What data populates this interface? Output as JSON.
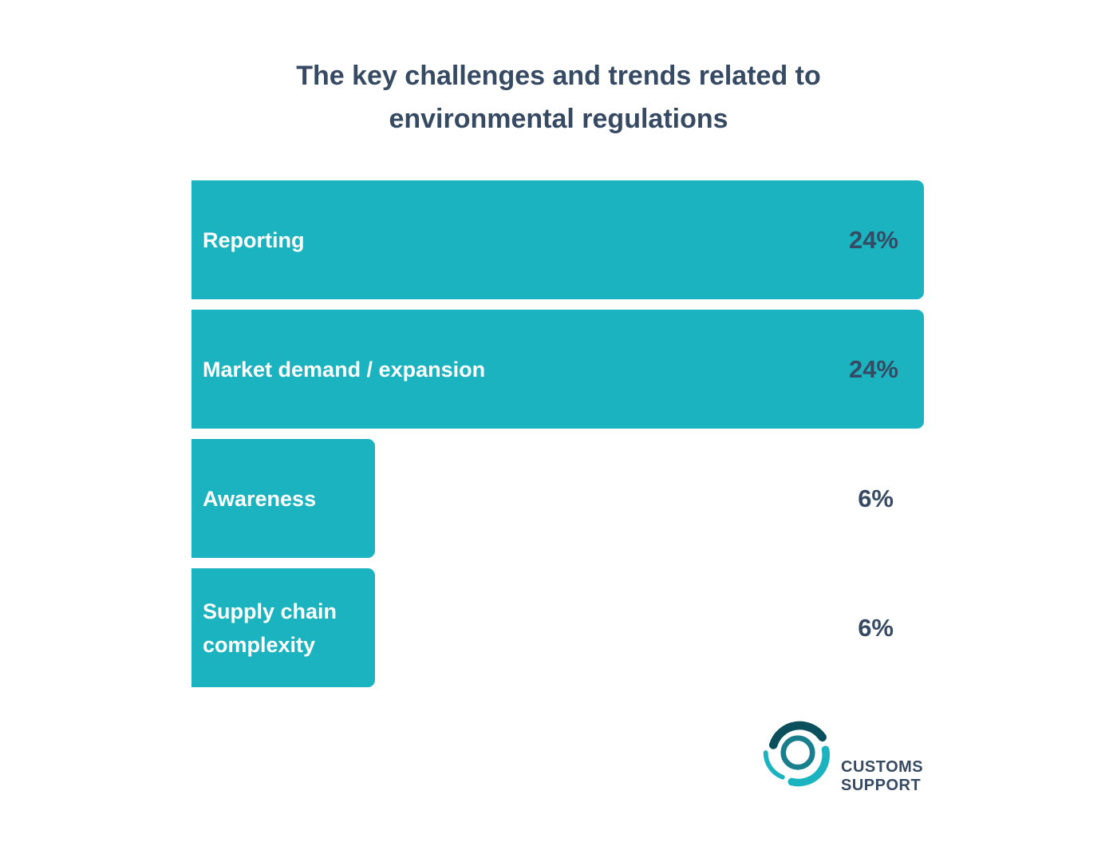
{
  "chart_data": {
    "type": "bar",
    "orientation": "horizontal",
    "title": "The key challenges and trends related to environmental regulations",
    "title_lines": [
      "The key challenges and trends related to",
      "environmental regulations"
    ],
    "categories": [
      "Reporting",
      "Market demand / expansion",
      "Awareness",
      "Supply chain complexity"
    ],
    "category_lines": [
      "Reporting",
      "Market demand / expansion",
      "Awareness",
      "Supply chain\ncomplexity"
    ],
    "values": [
      24,
      24,
      6,
      6
    ],
    "value_labels": [
      "24%",
      "24%",
      "6%",
      "6%"
    ],
    "xlim": [
      0,
      24
    ],
    "grid": false,
    "bar_color": "#1ab3bf",
    "text_color": "#374a63",
    "label_color": "#ffffff"
  },
  "logo": {
    "line1": "CUSTOMS",
    "line2": "SUPPORT",
    "colors": [
      "#0b4f5c",
      "#1a7f8c",
      "#1ab3bf"
    ]
  }
}
